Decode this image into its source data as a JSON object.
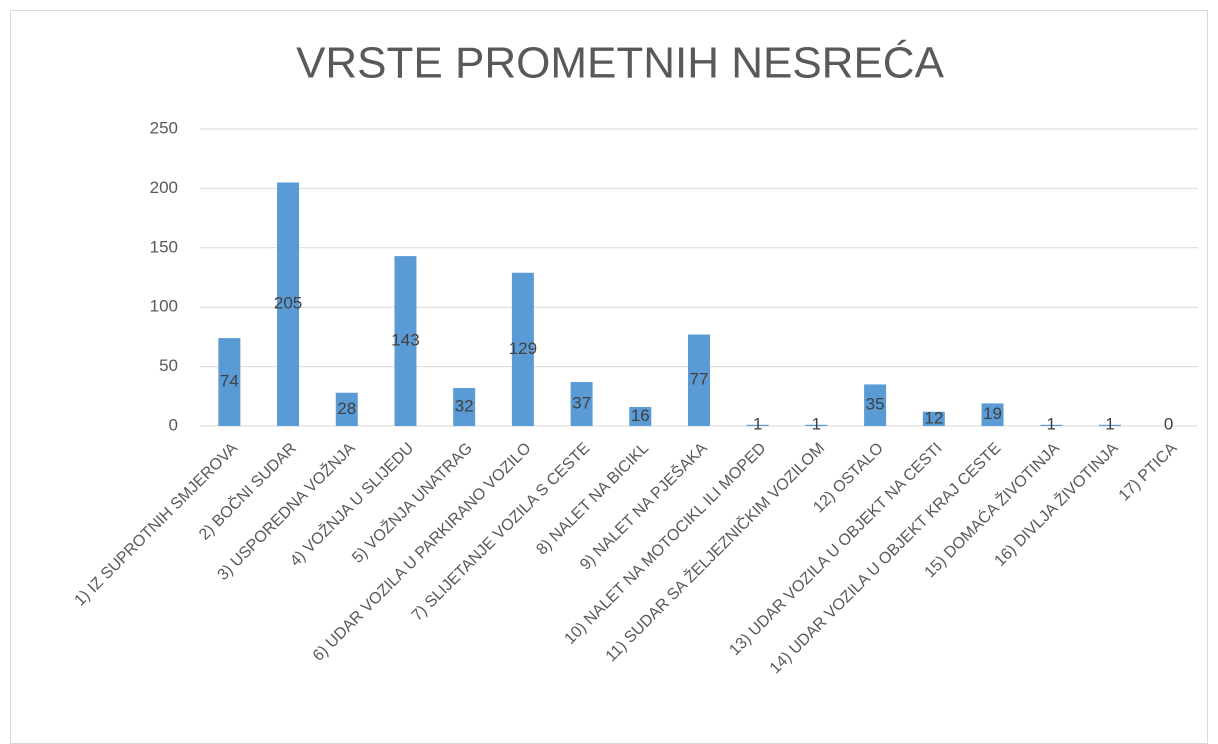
{
  "chart_data": {
    "type": "bar",
    "title": "VRSTE PROMETNIH NESREĆA",
    "categories": [
      "1) IZ SUPROTNIH SMJEROVA",
      "2) BOČNI SUDAR",
      "3) USPOREDNA VOŽNJA",
      "4) VOŽNJA U SLIJEDU",
      "5) VOŽNJA UNATRAG",
      "6) UDAR VOZILA U PARKIRANO VOZILO",
      "7) SLIJETANJE VOZILA S CESTE",
      "8) NALET NA BICIKL",
      "9) NALET NA PJEŠAKA",
      "10) NALET NA MOTOCIKL ILI MOPED",
      "11) SUDAR SA ŽELJEZNIČKIM VOZILOM",
      "12) OSTALO",
      "13) UDAR VOZILA U OBJEKT NA CESTI",
      "14) UDAR VOZILA U OBJEKT KRAJ CESTE",
      "15) DOMAĆA ŽIVOTINJA",
      "16) DIVLJA ŽIVOTINJA",
      "17) PTICA"
    ],
    "values": [
      74,
      205,
      28,
      143,
      32,
      129,
      37,
      16,
      77,
      1,
      1,
      35,
      12,
      19,
      1,
      1,
      0
    ],
    "color": "#5b9bd5",
    "ylim": [
      0,
      250
    ],
    "yticks": [
      0,
      50,
      100,
      150,
      200,
      250
    ],
    "grid": true
  }
}
